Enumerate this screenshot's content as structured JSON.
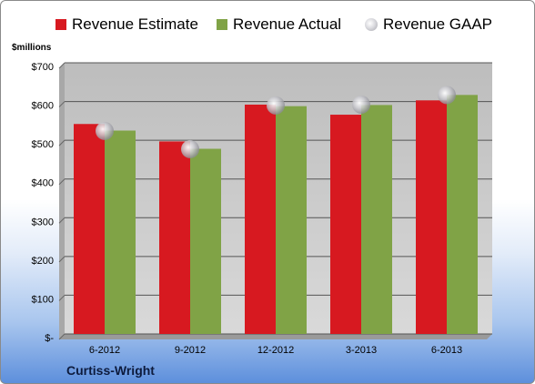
{
  "chart_data": {
    "type": "bar",
    "categories": [
      "6-2012",
      "9-2012",
      "12-2012",
      "3-2013",
      "6-2013"
    ],
    "series": [
      {
        "name": "Revenue Estimate",
        "values": [
          542,
          497,
          592,
          566,
          603
        ],
        "color": "#d71920",
        "kind": "bar"
      },
      {
        "name": "Revenue Actual",
        "values": [
          525,
          478,
          588,
          591,
          617
        ],
        "color": "#80a346",
        "kind": "bar"
      },
      {
        "name": "Revenue GAAP",
        "values": [
          524,
          477,
          590,
          592,
          617
        ],
        "color": "#c9c9cf",
        "kind": "marker"
      }
    ],
    "ylabel": "$millions",
    "ylim": [
      0,
      700
    ],
    "yticks": [
      0,
      100,
      200,
      300,
      400,
      500,
      600,
      700
    ],
    "ytick_labels": [
      "$-",
      "$100",
      "$200",
      "$300",
      "$400",
      "$500",
      "$600",
      "$700"
    ],
    "grid": true,
    "legend_position": "top",
    "footer": "Curtiss-Wright"
  }
}
